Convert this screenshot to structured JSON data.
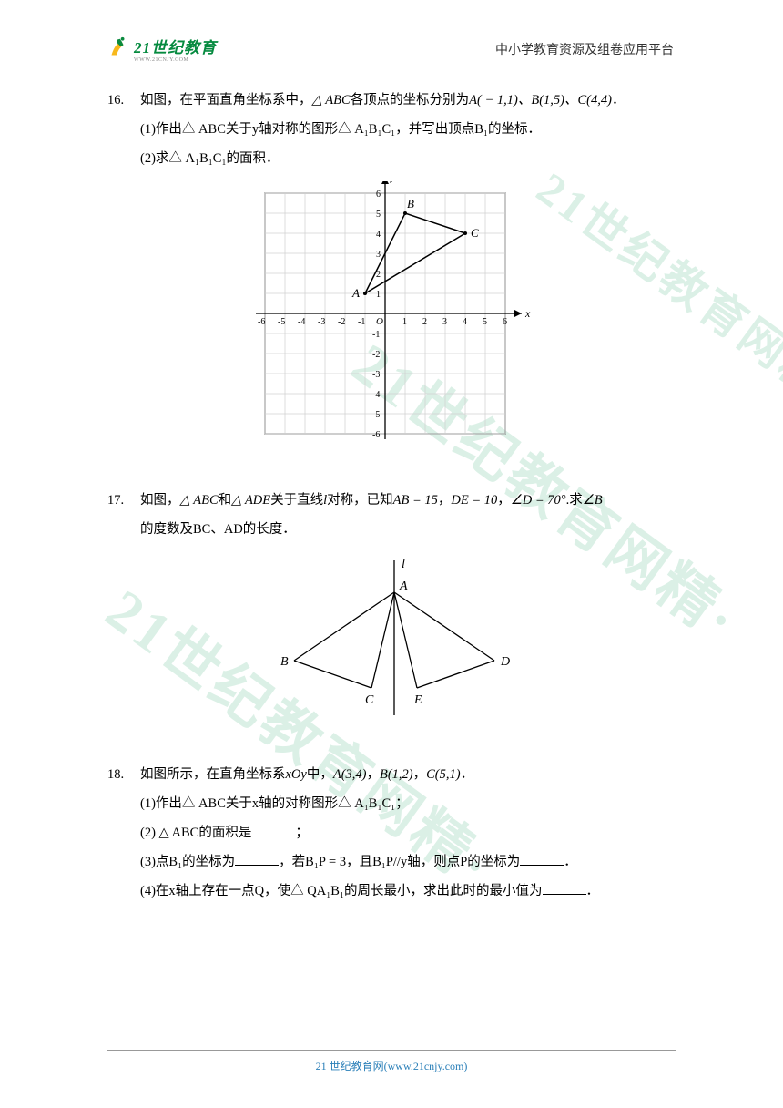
{
  "header": {
    "logo_main": "21世纪教育",
    "logo_sub": "WWW.21CNJY.COM",
    "right_text": "中小学教育资源及组卷应用平台"
  },
  "problems": {
    "p16": {
      "number": "16.",
      "line1_a": "如图，在平面直角坐标系中，",
      "line1_b": "△ ABC",
      "line1_c": "各顶点的坐标分别为",
      "line1_d": "A( − 1,1)、B(1,5)、C(4,4)",
      "line1_e": "．",
      "line2_a": "(1)作出",
      "line2_b": "△ ABC",
      "line2_c": "关于",
      "line2_d": "y",
      "line2_e": "轴对称的图形",
      "line2_f": "△ A₁B₁C₁",
      "line2_g": "，并写出顶点",
      "line2_h": "B₁",
      "line2_i": "的坐标．",
      "line3_a": "(2)求",
      "line3_b": "△ A₁B₁C₁",
      "line3_c": "的面积．"
    },
    "p17": {
      "number": "17.",
      "line1_a": "如图，",
      "line1_b": "△ ABC",
      "line1_c": "和",
      "line1_d": "△ ADE",
      "line1_e": "关于直线",
      "line1_f": "l",
      "line1_g": "对称，已知",
      "line1_h": "AB = 15",
      "line1_i": "，",
      "line1_j": "DE = 10",
      "line1_k": "，",
      "line1_l": "∠D = 70°",
      "line1_m": ".求",
      "line1_n": "∠B",
      "line2_a": "的度数及",
      "line2_b": "BC、AD",
      "line2_c": "的长度．"
    },
    "p18": {
      "number": "18.",
      "line1_a": "如图所示，在直角坐标系",
      "line1_b": "xOy",
      "line1_c": "中，",
      "line1_d": "A(3,4)",
      "line1_e": "，",
      "line1_f": "B(1,2)",
      "line1_g": "，",
      "line1_h": "C(5,1)",
      "line1_i": "．",
      "line2_a": "(1)作出",
      "line2_b": "△ ABC",
      "line2_c": "关于",
      "line2_d": "x",
      "line2_e": "轴的对称图形",
      "line2_f": "△ A₁B₁C₁",
      "line2_g": "；",
      "line3_a": "(2) ",
      "line3_b": "△ ABC",
      "line3_c": "的面积是",
      "line3_d": "；",
      "line4_a": "(3)点",
      "line4_b": "B₁",
      "line4_c": "的坐标为",
      "line4_d": "，若",
      "line4_e": "B₁P = 3",
      "line4_f": "，且",
      "line4_g": "B₁P//y",
      "line4_h": "轴，则点",
      "line4_i": "P",
      "line4_j": "的坐标为",
      "line4_k": "．",
      "line5_a": "(4)在",
      "line5_b": "x",
      "line5_c": "轴上存在一点",
      "line5_d": "Q",
      "line5_e": "，使",
      "line5_f": "△ QA₁B₁",
      "line5_g": "的周长最小，求出此时的最小值为",
      "line5_h": "．"
    }
  },
  "figure16": {
    "axis_labels": {
      "y": "y",
      "x": "x",
      "origin": "O"
    },
    "xticks": [
      "-6",
      "-5",
      "-4",
      "-3",
      "-2",
      "-1",
      "1",
      "2",
      "3",
      "4",
      "5",
      "6"
    ],
    "yticks_pos": [
      "1",
      "2",
      "3",
      "4",
      "5",
      "6"
    ],
    "yticks_neg": [
      "-1",
      "-2",
      "-3",
      "-4",
      "-5",
      "-6"
    ],
    "points": {
      "A": "A",
      "B": "B",
      "C": "C"
    },
    "A": [
      -1,
      1
    ],
    "B": [
      1,
      5
    ],
    "C": [
      4,
      4
    ],
    "grid_color": "#d0d0d0",
    "axis_color": "#000000",
    "line_color": "#000000"
  },
  "figure17": {
    "labels": {
      "l": "l",
      "A": "A",
      "B": "B",
      "C": "C",
      "D": "D",
      "E": "E"
    }
  },
  "watermark_text": "21世纪教育网精·",
  "footer": {
    "text_a": "21 世纪教育网(",
    "text_b": "www.21cnjy.com",
    "text_c": ")"
  }
}
